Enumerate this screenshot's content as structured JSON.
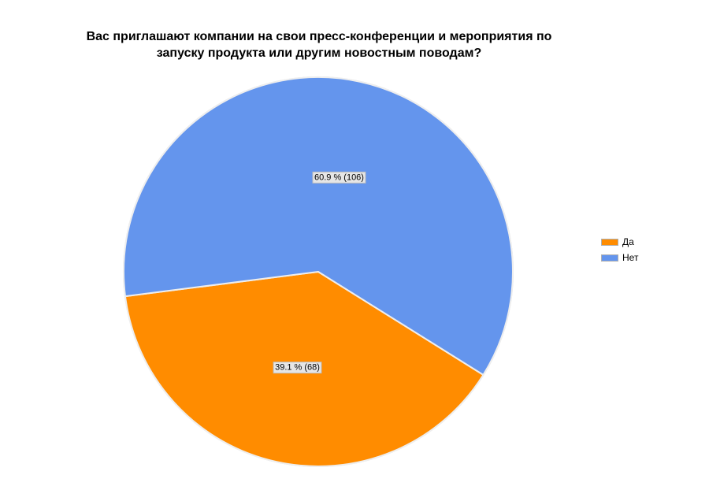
{
  "chart_data": {
    "type": "pie",
    "title_lines": [
      "Вас приглашают компании на свои пресс-конференции и мероприятия по",
      "запуску продукта или другим новостным поводам?"
    ],
    "slices": [
      {
        "name": "Да",
        "percent": 39.1,
        "count": 68,
        "label": "39.1 % (68)",
        "color": "#FF8C00"
      },
      {
        "name": "Нет",
        "percent": 60.9,
        "count": 106,
        "label": "60.9 % (106)",
        "color": "#6495ED"
      }
    ],
    "legend": {
      "placement": "right"
    }
  }
}
